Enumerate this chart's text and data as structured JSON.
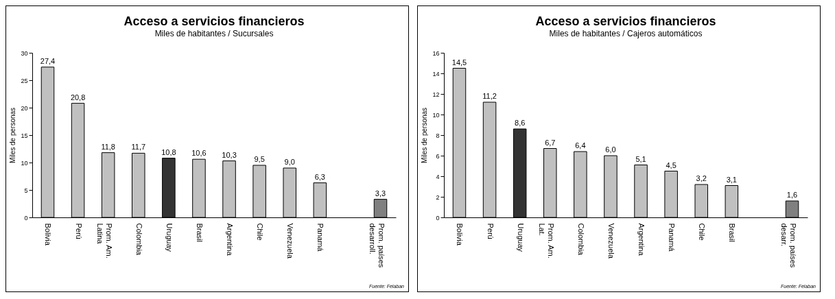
{
  "chart_data": [
    {
      "type": "bar",
      "title": "Acceso a servicios financieros",
      "subtitle": "Miles de habitantes / Sucursales",
      "ylabel": "Miles de personas",
      "categories": [
        "Bolivia",
        "Perú",
        "Prom. Am. Latina",
        "Colombia",
        "Uruguay",
        "Brasil",
        "Argentina",
        "Chile",
        "Venezuela",
        "Panamá",
        null,
        "Prom. países desarroll."
      ],
      "values": [
        27.4,
        20.8,
        11.8,
        11.7,
        10.8,
        10.6,
        10.3,
        9.5,
        9.0,
        6.3,
        null,
        3.3
      ],
      "colors": [
        "#c0c0c0",
        "#c0c0c0",
        "#c0c0c0",
        "#c0c0c0",
        "#333333",
        "#c0c0c0",
        "#c0c0c0",
        "#c0c0c0",
        "#c0c0c0",
        "#c0c0c0",
        "#c0c0c0",
        "#808080"
      ],
      "value_labels": [
        "27,4",
        "20,8",
        "11,8",
        "11,7",
        "10,8",
        "10,6",
        "10,3",
        "9,5",
        "9,0",
        "6,3",
        null,
        "3,3"
      ],
      "ylim": [
        0,
        30
      ],
      "yticks": [
        0,
        5,
        10,
        15,
        20,
        25,
        30
      ],
      "annotations": [
        "Fuente: Felaban"
      ]
    },
    {
      "type": "bar",
      "title": "Acceso a servicios financieros",
      "subtitle": "Miles de habitantes / Cajeros automáticos",
      "ylabel": "Miles de personas",
      "categories": [
        "Bolivia",
        "Perú",
        "Uruguay",
        "Prom. Am. Lat.",
        "Colombia",
        "Venezuela",
        "Argentina",
        "Panamá",
        "Chile",
        "Brasil",
        null,
        "Prom. países desarr."
      ],
      "values": [
        14.5,
        11.2,
        8.6,
        6.7,
        6.4,
        6.0,
        5.1,
        4.5,
        3.2,
        3.1,
        null,
        1.6
      ],
      "colors": [
        "#c0c0c0",
        "#c0c0c0",
        "#333333",
        "#c0c0c0",
        "#c0c0c0",
        "#c0c0c0",
        "#c0c0c0",
        "#c0c0c0",
        "#c0c0c0",
        "#c0c0c0",
        "#c0c0c0",
        "#808080"
      ],
      "value_labels": [
        "14,5",
        "11,2",
        "8,6",
        "6,7",
        "6,4",
        "6,0",
        "5,1",
        "4,5",
        "3,2",
        "3,1",
        null,
        "1,6"
      ],
      "ylim": [
        0,
        16
      ],
      "yticks": [
        0,
        2,
        4,
        6,
        8,
        10,
        12,
        14,
        16
      ],
      "annotations": [
        "Fuente: Felaban"
      ]
    }
  ]
}
